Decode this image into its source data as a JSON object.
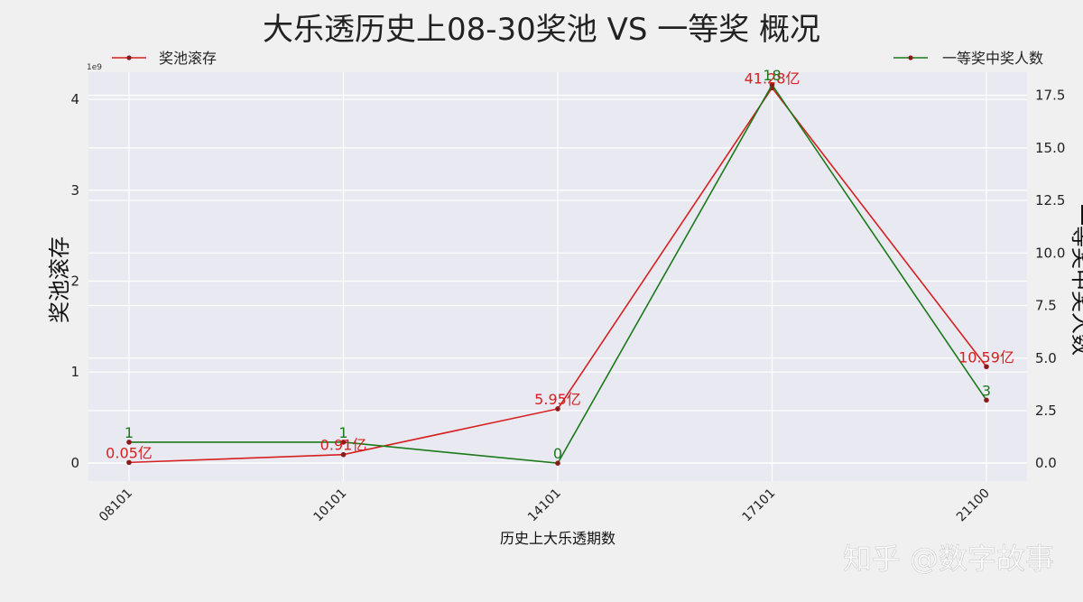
{
  "chart_data": {
    "type": "line",
    "title": "大乐透历史上08-30奖池 VS 一等奖 概况",
    "xlabel": "历史上大乐透期数",
    "ylabel_left": "奖池滚存",
    "ylabel_right": "一等奖中奖人数",
    "left_axis_multiplier": "1e9",
    "categories": [
      "08101",
      "10101",
      "14101",
      "17101",
      "21100"
    ],
    "left_ylim": [
      -0.2,
      4.3
    ],
    "left_ticks": [
      "0",
      "1",
      "2",
      "3",
      "4"
    ],
    "right_ylim": [
      -0.85,
      18.6
    ],
    "right_ticks": [
      "0.0",
      "2.5",
      "5.0",
      "7.5",
      "10.0",
      "12.5",
      "15.0",
      "17.5"
    ],
    "grid": true,
    "series": [
      {
        "name": "奖池滚存",
        "axis": "left",
        "color": "#d62020",
        "values": [
          0.005,
          0.091,
          0.595,
          4.128,
          1.059
        ],
        "labels": [
          "0.05亿",
          "0.91亿",
          "5.95亿",
          "41.28亿",
          "10.59亿"
        ],
        "legend_position": "top-left"
      },
      {
        "name": "一等奖中奖人数",
        "axis": "right",
        "color": "#1a7a1a",
        "values": [
          1,
          1,
          0,
          18,
          3
        ],
        "labels": [
          "1",
          "1",
          "0",
          "18",
          "3"
        ],
        "legend_position": "top-right"
      }
    ]
  },
  "watermark": "知乎 @数字故事"
}
